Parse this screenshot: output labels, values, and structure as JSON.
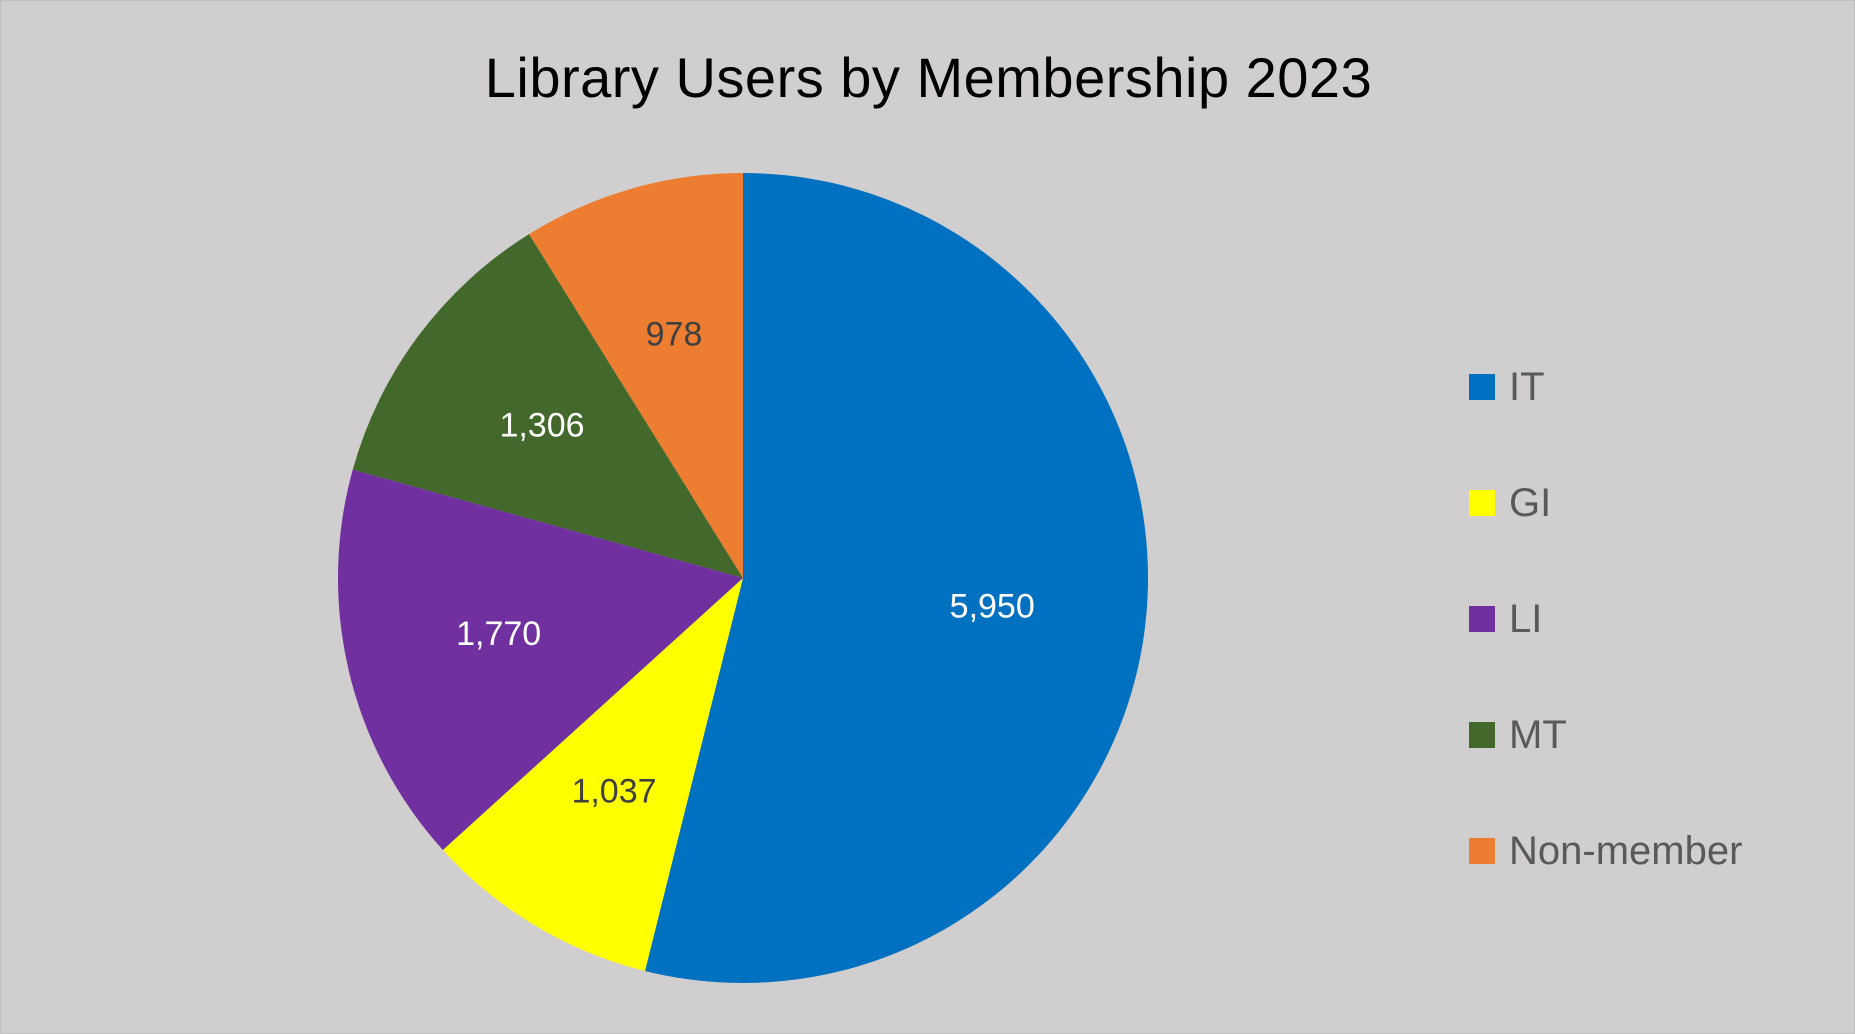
{
  "chart_data": {
    "type": "pie",
    "title": "Library Users by Membership 2023",
    "categories": [
      "IT",
      "GI",
      "LI",
      "MT",
      "Non-member"
    ],
    "values": [
      5950,
      1037,
      1770,
      1306,
      978
    ],
    "value_labels": [
      "5,950",
      "1,037",
      "1,770",
      "1,306",
      "978"
    ],
    "colors": [
      "#0070c0",
      "#ffff00",
      "#7030a0",
      "#43682b",
      "#ed7d31"
    ],
    "label_colors": [
      "#ffffff",
      "#404040",
      "#ffffff",
      "#ffffff",
      "#404040"
    ],
    "start_angle_deg": 0,
    "direction": "clockwise",
    "legend_position": "right"
  }
}
